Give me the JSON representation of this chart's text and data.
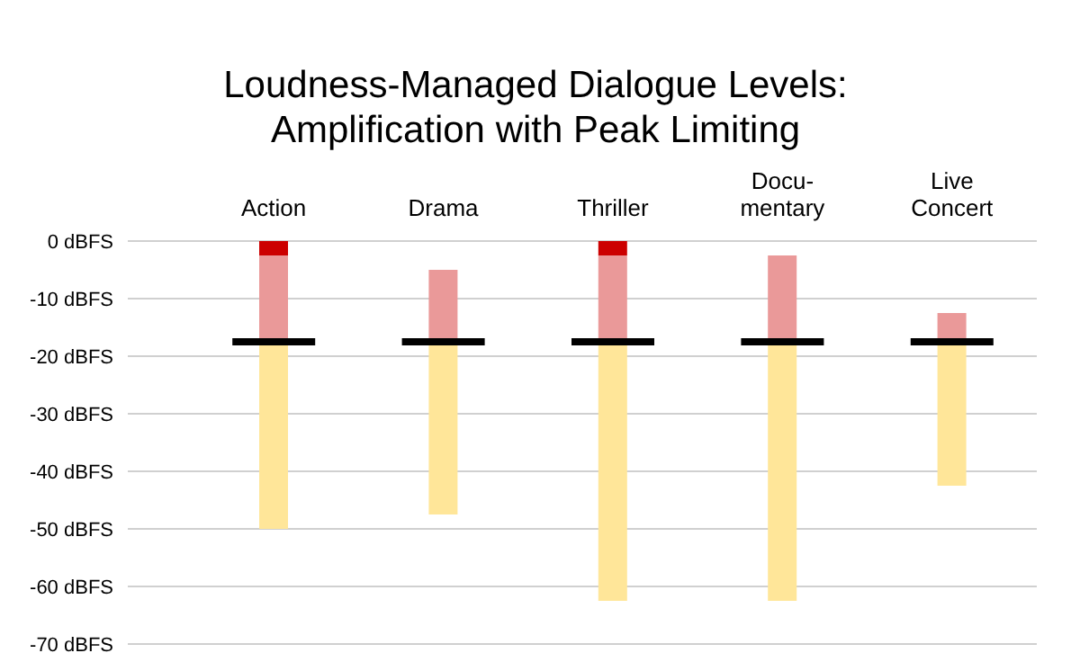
{
  "chart_data": {
    "type": "bar",
    "title": "Loudness-Managed Dialogue Levels:\nAmplification with Peak Limiting",
    "categories": [
      "Action",
      "Drama",
      "Thriller",
      "Docu-\nmentary",
      "Live\nConcert"
    ],
    "series": [
      {
        "color": "#ffe699",
        "base": [
          -50,
          -47.5,
          -62.5,
          -62.5,
          -42.5
        ],
        "values": [
          32.5,
          30,
          45,
          45,
          25
        ]
      },
      {
        "color": "#ea9999",
        "base": [
          -17.5,
          -17.5,
          -17.5,
          -17.5,
          -17.5
        ],
        "values": [
          15,
          12.5,
          15,
          15,
          5
        ]
      },
      {
        "color": "#cc0000",
        "base": [
          -2.5,
          null,
          -2.5,
          null,
          null
        ],
        "values": [
          2.5,
          null,
          2.5,
          null,
          null
        ]
      }
    ],
    "ref_lines": [
      {
        "axis": "y",
        "value": -17.5,
        "color": "#000000"
      }
    ],
    "ylim": [
      -70,
      0
    ],
    "yticks": [
      {
        "value": 0,
        "label": "0 dBFS"
      },
      {
        "value": -10,
        "label": "-10 dBFS"
      },
      {
        "value": -20,
        "label": "-20 dBFS"
      },
      {
        "value": -30,
        "label": "-30 dBFS"
      },
      {
        "value": -40,
        "label": "-40 dBFS"
      },
      {
        "value": -50,
        "label": "-50 dBFS"
      },
      {
        "value": -60,
        "label": "-60 dBFS"
      },
      {
        "value": -70,
        "label": "-70 dBFS"
      }
    ],
    "grid": "y",
    "legend": false
  }
}
